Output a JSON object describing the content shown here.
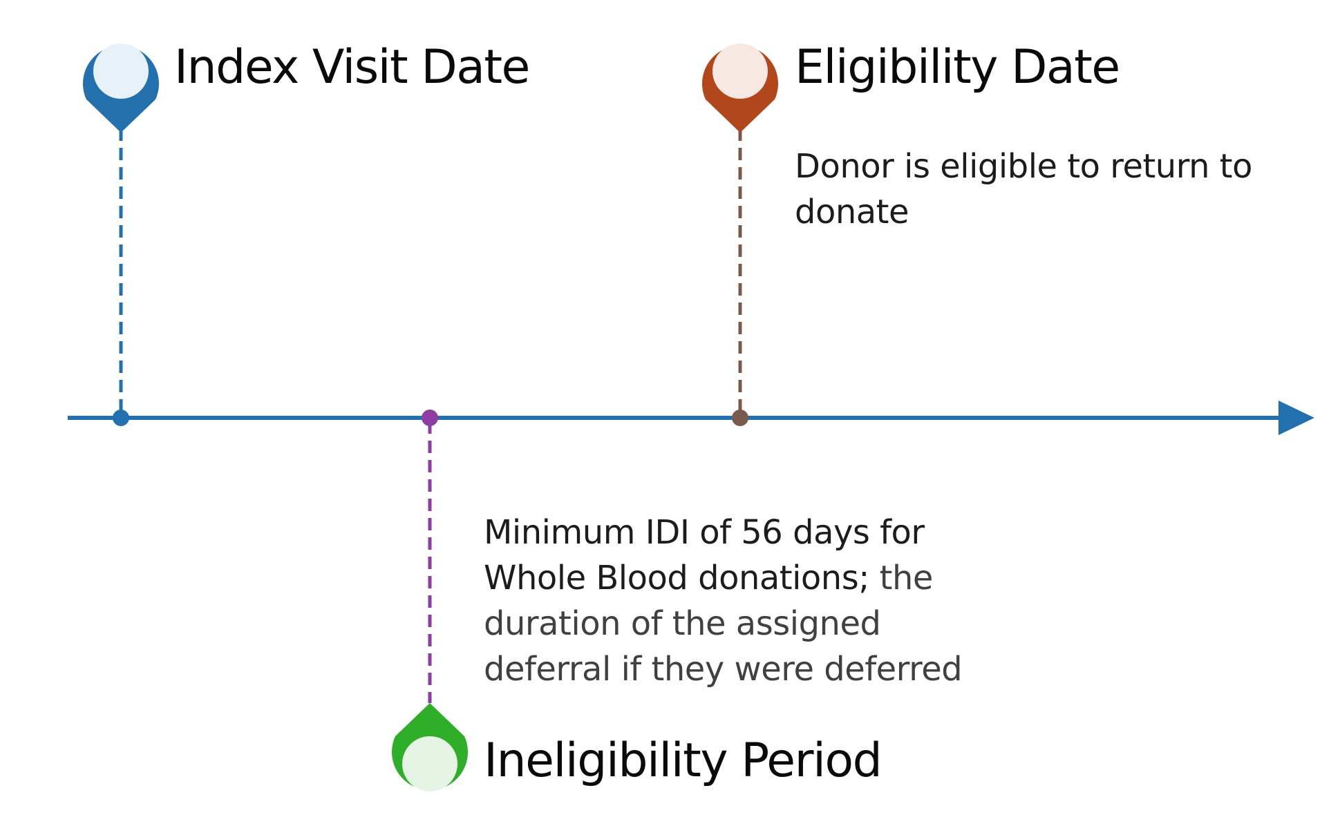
{
  "colors": {
    "axis": "#2270ad",
    "index": "#2270ad",
    "index_fill": "#e8f0f8",
    "eligibility": "#b3471c",
    "eligibility_fill": "#f7e8e3",
    "eligibility_stem": "#7a5a4d",
    "ineligibility": "#2fae2a",
    "ineligibility_fill": "#e6f4e5",
    "ineligibility_stem": "#8e3ea2"
  },
  "markers": {
    "index": {
      "title": "Index Visit Date",
      "icon": "map-pin-icon"
    },
    "eligibility": {
      "title": "Eligibility Date",
      "icon": "map-pin-icon",
      "description_lines": [
        "Donor is eligible to return to",
        "donate"
      ]
    },
    "ineligibility": {
      "title": "Ineligibility Period",
      "icon": "map-pin-icon",
      "description_lines": [
        "Minimum IDI of 56 days for",
        "Whole Blood donations;",
        " the",
        "duration of the assigned",
        "deferral if they were deferred"
      ]
    }
  },
  "axis": {
    "icon": "arrow-right-icon"
  }
}
